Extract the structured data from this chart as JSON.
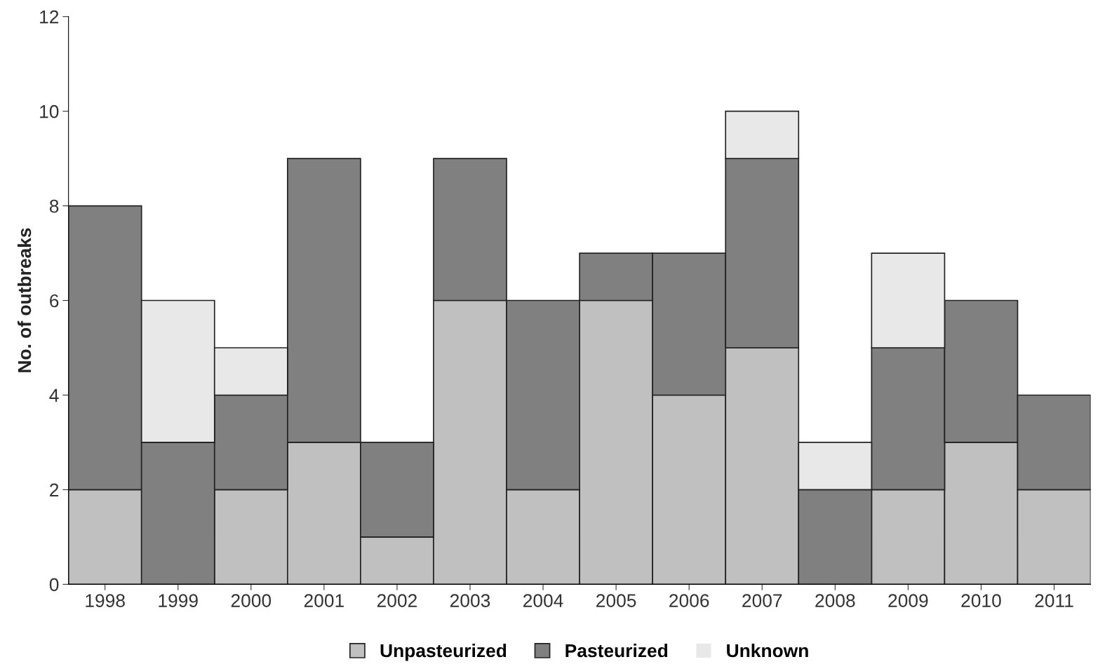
{
  "chart_data": {
    "type": "bar",
    "stacked": true,
    "ylabel": "No. of outbreaks",
    "categories": [
      "1998",
      "1999",
      "2000",
      "2001",
      "2002",
      "2003",
      "2004",
      "2005",
      "2006",
      "2007",
      "2008",
      "2009",
      "2010",
      "2011"
    ],
    "series": [
      {
        "name": "Unpasteurized",
        "color": "#c0c0c0",
        "values": [
          2,
          0,
          2,
          3,
          1,
          6,
          2,
          6,
          4,
          5,
          0,
          2,
          3,
          2
        ]
      },
      {
        "name": "Pasteurized",
        "color": "#808080",
        "values": [
          6,
          3,
          2,
          6,
          2,
          3,
          4,
          1,
          3,
          4,
          2,
          3,
          3,
          2
        ]
      },
      {
        "name": "Unknown",
        "color": "#e8e8e8",
        "values": [
          0,
          3,
          1,
          0,
          0,
          0,
          0,
          0,
          0,
          1,
          1,
          2,
          0,
          0
        ]
      }
    ],
    "ylim": [
      0,
      12
    ],
    "yticks": [
      0,
      2,
      4,
      6,
      8,
      10,
      12
    ],
    "grid": false,
    "legend": "bottom"
  }
}
